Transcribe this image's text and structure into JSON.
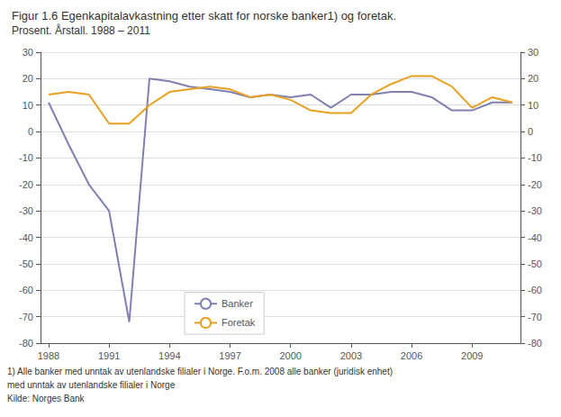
{
  "chart_data": {
    "type": "line",
    "title": "Figur 1.6 Egenkapitalavkastning etter skatt for norske banker1) og foretak.",
    "subtitle": "Prosent. Årstall. 1988 – 2011",
    "annotations": [
      "1) Alle banker med unntak av utenlandske filialer i Norge. F.o.m. 2008 alle banker (juridisk enhet)",
      "med unntak av utenlandske filialer i Norge",
      "Kilde: Norges Bank"
    ],
    "x": [
      1988,
      1989,
      1990,
      1991,
      1992,
      1993,
      1994,
      1995,
      1996,
      1997,
      1998,
      1999,
      2000,
      2001,
      2002,
      2003,
      2004,
      2005,
      2006,
      2007,
      2008,
      2009,
      2010,
      2011
    ],
    "series": [
      {
        "name": "Banker",
        "color": "#8080b0",
        "values": [
          11,
          -5,
          -20,
          -30,
          -72,
          20,
          19,
          17,
          16,
          15,
          13,
          14,
          13,
          14,
          9,
          14,
          14,
          15,
          15,
          13,
          8,
          8,
          11,
          11
        ]
      },
      {
        "name": "Foretak",
        "color": "#e8a020",
        "values": [
          14,
          15,
          14,
          3,
          3,
          10,
          15,
          16,
          17,
          16,
          13,
          14,
          12,
          8,
          7,
          7,
          14,
          18,
          21,
          21,
          17,
          9,
          13,
          11
        ]
      }
    ],
    "xlim": [
      1987.6,
      2011.4
    ],
    "xticks": [
      1988,
      1991,
      1994,
      1997,
      2000,
      2003,
      2006,
      2009
    ],
    "ylim": [
      -80,
      30
    ],
    "yticks": [
      -80,
      -70,
      -60,
      -50,
      -40,
      -30,
      -20,
      -10,
      0,
      10,
      20,
      30
    ],
    "y2lim": [
      -80,
      30
    ],
    "y2ticks": [
      -80,
      -70,
      -60,
      -50,
      -40,
      -30,
      -20,
      -10,
      0,
      10,
      20,
      30
    ],
    "grid": true,
    "legend": "lower left"
  }
}
